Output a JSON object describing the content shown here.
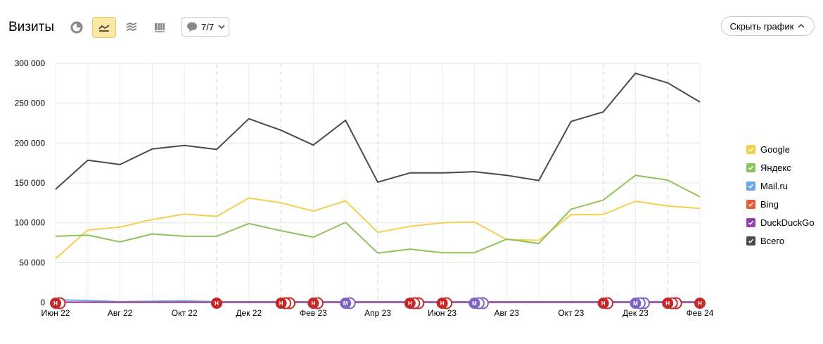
{
  "header": {
    "title": "Визиты",
    "notes_count": "7/7",
    "hide_chart_label": "Скрыть график",
    "view_buttons": [
      {
        "name": "pie-chart-icon",
        "active": false
      },
      {
        "name": "line-chart-icon",
        "active": true
      },
      {
        "name": "area-chart-icon",
        "active": false
      },
      {
        "name": "bar-chart-icon",
        "active": false
      }
    ]
  },
  "colors": {
    "Google": "#f4cf52",
    "Яндекс": "#8fc35c",
    "Mail.ru": "#6fa6e6",
    "Bing": "#e9593a",
    "DuckDuckGo": "#8e44ad",
    "Всего": "#4a4a4a",
    "note_red": "#c62828",
    "note_purple": "#7e63c4"
  },
  "chart_data": {
    "type": "line",
    "ylim": [
      0,
      300000
    ],
    "y_ticks": [
      "0",
      "50 000",
      "100 000",
      "150 000",
      "200 000",
      "250 000",
      "300 000"
    ],
    "y_tick_values": [
      0,
      50000,
      100000,
      150000,
      200000,
      250000,
      300000
    ],
    "x_tick_labels": [
      "Июн 22",
      "Авг 22",
      "Окт 22",
      "Дек 22",
      "Фев 23",
      "Апр 23",
      "Июн 23",
      "Авг 23",
      "Окт 23",
      "Дек 23",
      "Фев 24"
    ],
    "x_tick_indices": [
      0,
      2,
      4,
      6,
      8,
      10,
      12,
      14,
      16,
      18,
      20
    ],
    "grid": true,
    "legend_position": "right",
    "series": [
      {
        "name": "Google",
        "values": [
          55000,
          91000,
          94500,
          104000,
          111000,
          108000,
          131000,
          125000,
          114500,
          127500,
          88000,
          95500,
          100000,
          101000,
          79000,
          78000,
          110000,
          110500,
          127000,
          121000,
          118000
        ]
      },
      {
        "name": "Яндекс",
        "values": [
          83000,
          84500,
          76000,
          86000,
          83000,
          83000,
          99000,
          90000,
          82000,
          100500,
          62000,
          67000,
          62500,
          62500,
          79500,
          74000,
          117000,
          128500,
          159500,
          153500,
          132500
        ]
      },
      {
        "name": "Mail.ru",
        "values": [
          3500,
          2500,
          1000,
          1500,
          2000,
          1000,
          1000,
          1000,
          1000,
          1000,
          1000,
          1000,
          1000,
          1000,
          1000,
          1000,
          1000,
          1000,
          1000,
          1000,
          1000
        ]
      },
      {
        "name": "Bing",
        "values": [
          500,
          500,
          500,
          500,
          500,
          500,
          500,
          500,
          500,
          500,
          500,
          500,
          500,
          500,
          500,
          500,
          500,
          500,
          500,
          500,
          500
        ]
      },
      {
        "name": "DuckDuckGo",
        "values": [
          200,
          200,
          200,
          200,
          200,
          200,
          200,
          200,
          200,
          200,
          200,
          200,
          200,
          200,
          200,
          200,
          200,
          200,
          200,
          200,
          200
        ]
      },
      {
        "name": "Всего",
        "values": [
          142000,
          178500,
          173000,
          192500,
          197000,
          192000,
          230500,
          216000,
          197500,
          228500,
          151000,
          162500,
          162500,
          164000,
          159500,
          153000,
          227000,
          239000,
          287500,
          275500,
          251500
        ]
      }
    ],
    "notes": [
      {
        "x": 0,
        "letter": "Н",
        "count": 2,
        "kind": "red"
      },
      {
        "x": 5,
        "letter": "Н",
        "count": 1,
        "kind": "red"
      },
      {
        "x": 7,
        "letter": "Н",
        "count": 3,
        "kind": "red"
      },
      {
        "x": 8,
        "letter": "Н",
        "count": 2,
        "kind": "red"
      },
      {
        "x": 9,
        "letter": "М",
        "count": 2,
        "kind": "purple"
      },
      {
        "x": 11,
        "letter": "Н",
        "count": 3,
        "kind": "red"
      },
      {
        "x": 12,
        "letter": "Н",
        "count": 2,
        "kind": "red"
      },
      {
        "x": 13,
        "letter": "М",
        "count": 3,
        "kind": "purple"
      },
      {
        "x": 17,
        "letter": "Н",
        "count": 2,
        "kind": "red"
      },
      {
        "x": 18,
        "letter": "М",
        "count": 3,
        "kind": "purple"
      },
      {
        "x": 19,
        "letter": "Н",
        "count": 3,
        "kind": "red"
      },
      {
        "x": 20,
        "letter": "Н",
        "count": 1,
        "kind": "red"
      }
    ],
    "dashed_x": [
      5,
      7,
      10,
      17,
      19
    ]
  },
  "legend": [
    "Google",
    "Яндекс",
    "Mail.ru",
    "Bing",
    "DuckDuckGo",
    "Всего"
  ]
}
